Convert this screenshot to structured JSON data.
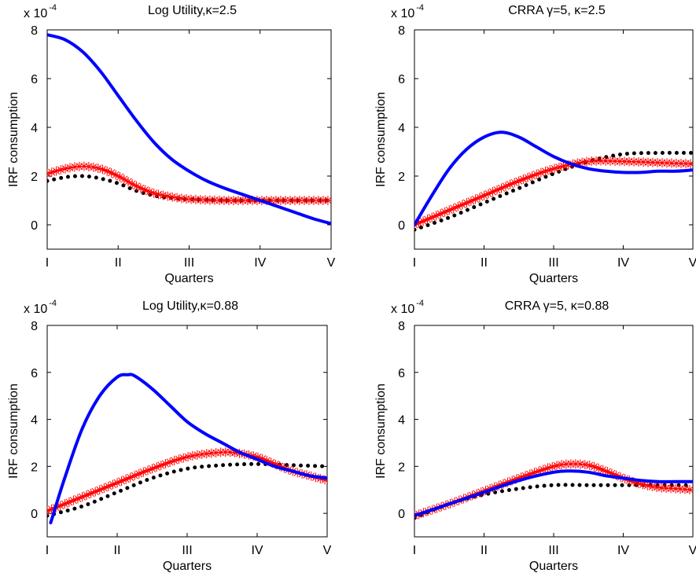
{
  "chart_data": [
    {
      "type": "line",
      "title": "Log Utility,κ=2.5",
      "xlabel": "Quarters",
      "ylabel": "IRF consumption",
      "y_multiplier": "x 10",
      "y_exponent": "-4",
      "xlim": [
        0,
        4
      ],
      "ylim": [
        -1,
        8
      ],
      "x_ticks": [
        "I",
        "II",
        "III",
        "IV",
        "V"
      ],
      "y_ticks": [
        0,
        2,
        4,
        6,
        8
      ],
      "series": [
        {
          "color": "#0000ff",
          "style": "solid",
          "x": [
            0,
            0.25,
            0.5,
            0.75,
            1,
            1.25,
            1.5,
            1.75,
            2,
            2.25,
            2.5,
            2.75,
            3,
            3.25,
            3.5,
            3.75,
            4
          ],
          "y": [
            7.8,
            7.6,
            7.1,
            6.3,
            5.3,
            4.3,
            3.4,
            2.7,
            2.2,
            1.8,
            1.5,
            1.25,
            1.0,
            0.75,
            0.5,
            0.25,
            0.05
          ]
        },
        {
          "color": "#ff0000",
          "style": "star",
          "x": [
            0,
            0.25,
            0.5,
            0.75,
            1,
            1.25,
            1.5,
            1.75,
            2,
            2.5,
            3,
            3.5,
            4
          ],
          "y": [
            2.1,
            2.3,
            2.4,
            2.3,
            2.0,
            1.6,
            1.3,
            1.15,
            1.05,
            1.0,
            1.0,
            1.0,
            1.0
          ]
        },
        {
          "color": "#000000",
          "style": "dotted",
          "x": [
            0,
            0.25,
            0.5,
            0.75,
            1,
            1.25,
            1.5,
            1.75,
            2,
            2.5,
            3,
            3.5,
            4
          ],
          "y": [
            1.8,
            1.95,
            2.0,
            1.9,
            1.7,
            1.4,
            1.2,
            1.1,
            1.05,
            1.0,
            1.0,
            1.0,
            1.0
          ]
        }
      ]
    },
    {
      "type": "line",
      "title": "CRRA γ=5, κ=2.5",
      "xlabel": "Quarters",
      "ylabel": "IRF consumption",
      "y_multiplier": "x 10",
      "y_exponent": "-4",
      "xlim": [
        0,
        4
      ],
      "ylim": [
        -1,
        8
      ],
      "x_ticks": [
        "I",
        "II",
        "III",
        "IV",
        "V"
      ],
      "y_ticks": [
        0,
        2,
        4,
        6,
        8
      ],
      "series": [
        {
          "color": "#0000ff",
          "style": "solid",
          "x": [
            0,
            0.25,
            0.5,
            0.75,
            1,
            1.25,
            1.5,
            1.75,
            2,
            2.25,
            2.5,
            2.75,
            3,
            3.25,
            3.5,
            3.75,
            4
          ],
          "y": [
            0.0,
            1.2,
            2.3,
            3.1,
            3.6,
            3.8,
            3.6,
            3.2,
            2.8,
            2.5,
            2.3,
            2.2,
            2.15,
            2.15,
            2.2,
            2.2,
            2.25
          ]
        },
        {
          "color": "#ff0000",
          "style": "star",
          "x": [
            0,
            0.5,
            1,
            1.5,
            2,
            2.5,
            3,
            3.5,
            4
          ],
          "y": [
            0.0,
            0.6,
            1.2,
            1.8,
            2.3,
            2.6,
            2.6,
            2.55,
            2.5
          ]
        },
        {
          "color": "#000000",
          "style": "dotted",
          "x": [
            0,
            0.5,
            1,
            1.5,
            2,
            2.5,
            3,
            3.5,
            4
          ],
          "y": [
            -0.2,
            0.3,
            0.9,
            1.5,
            2.1,
            2.6,
            2.9,
            2.95,
            2.95
          ]
        }
      ]
    },
    {
      "type": "line",
      "title": "Log Utility,κ=0.88",
      "xlabel": "Quarters",
      "ylabel": "IRF consumption",
      "y_multiplier": "x 10",
      "y_exponent": "-4",
      "xlim": [
        0,
        4
      ],
      "ylim": [
        -1,
        8
      ],
      "x_ticks": [
        "I",
        "II",
        "III",
        "IV",
        "V"
      ],
      "y_ticks": [
        0,
        2,
        4,
        6,
        8
      ],
      "series": [
        {
          "color": "#0000ff",
          "style": "solid",
          "x": [
            0.05,
            0.25,
            0.5,
            0.75,
            1,
            1.15,
            1.25,
            1.5,
            1.75,
            2,
            2.25,
            2.5,
            2.75,
            3,
            3.25,
            3.5,
            3.75,
            4
          ],
          "y": [
            -0.4,
            1.5,
            3.6,
            5.0,
            5.8,
            5.9,
            5.85,
            5.3,
            4.6,
            3.9,
            3.4,
            3.0,
            2.6,
            2.3,
            2.0,
            1.8,
            1.6,
            1.5
          ]
        },
        {
          "color": "#ff0000",
          "style": "star",
          "x": [
            0,
            0.5,
            1,
            1.5,
            2,
            2.5,
            2.75,
            3,
            3.25,
            3.5,
            3.75,
            4
          ],
          "y": [
            0.1,
            0.7,
            1.3,
            1.9,
            2.4,
            2.6,
            2.55,
            2.4,
            2.1,
            1.8,
            1.6,
            1.4
          ]
        },
        {
          "color": "#000000",
          "style": "dotted",
          "x": [
            0,
            0.5,
            1,
            1.5,
            2,
            2.5,
            3,
            3.5,
            4
          ],
          "y": [
            -0.1,
            0.3,
            0.9,
            1.5,
            1.9,
            2.05,
            2.1,
            2.05,
            2.0
          ]
        }
      ]
    },
    {
      "type": "line",
      "title": "CRRA γ=5,  κ=0.88",
      "xlabel": "Quarters",
      "ylabel": "IRF consumption",
      "y_multiplier": "x 10",
      "y_exponent": "-4",
      "xlim": [
        0,
        4
      ],
      "ylim": [
        -1,
        8
      ],
      "x_ticks": [
        "I",
        "II",
        "III",
        "IV",
        "V"
      ],
      "y_ticks": [
        0,
        2,
        4,
        6,
        8
      ],
      "series": [
        {
          "color": "#0000ff",
          "style": "solid",
          "x": [
            0,
            0.5,
            1,
            1.5,
            2,
            2.25,
            2.5,
            2.75,
            3,
            3.25,
            3.5,
            3.75,
            4
          ],
          "y": [
            -0.1,
            0.4,
            0.9,
            1.4,
            1.75,
            1.8,
            1.75,
            1.6,
            1.5,
            1.4,
            1.35,
            1.35,
            1.35
          ]
        },
        {
          "color": "#ff0000",
          "style": "star",
          "x": [
            0,
            0.5,
            1,
            1.5,
            2,
            2.25,
            2.5,
            2.75,
            3,
            3.25,
            3.5,
            3.75,
            4
          ],
          "y": [
            -0.1,
            0.4,
            0.95,
            1.5,
            2.0,
            2.1,
            2.05,
            1.8,
            1.5,
            1.25,
            1.1,
            1.05,
            1.0
          ]
        },
        {
          "color": "#000000",
          "style": "dotted",
          "x": [
            0,
            0.5,
            1,
            1.5,
            2,
            2.5,
            3,
            3.5,
            4
          ],
          "y": [
            -0.2,
            0.4,
            0.8,
            1.05,
            1.2,
            1.2,
            1.2,
            1.2,
            1.2
          ]
        }
      ]
    }
  ]
}
